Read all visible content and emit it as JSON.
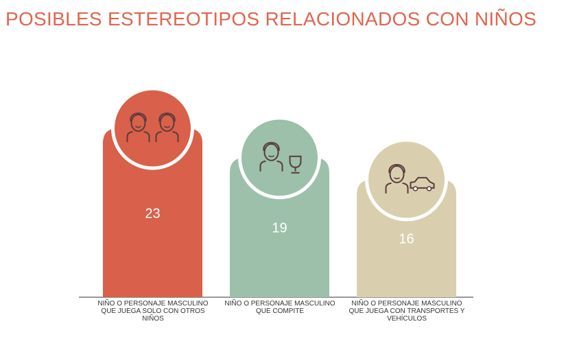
{
  "chart_data": {
    "type": "bar",
    "title": "POSIBLES ESTEREOTIPOS RELACIONADOS CON NIÑOS",
    "categories": [
      "NIÑO O PERSONAJE MASCULINO QUE JUEGA SOLO CON OTROS NIÑOS",
      "NIÑO O PERSONAJE MASCULINO QUE COMPITE",
      "NIÑO O PERSONAJE MASCULINO QUE JUEGA CON TRANSPORTES Y VEHÍCULOS"
    ],
    "values": [
      23,
      19,
      16
    ],
    "colors": [
      "#d9604a",
      "#9cc0aa",
      "#d9cfae"
    ]
  }
}
